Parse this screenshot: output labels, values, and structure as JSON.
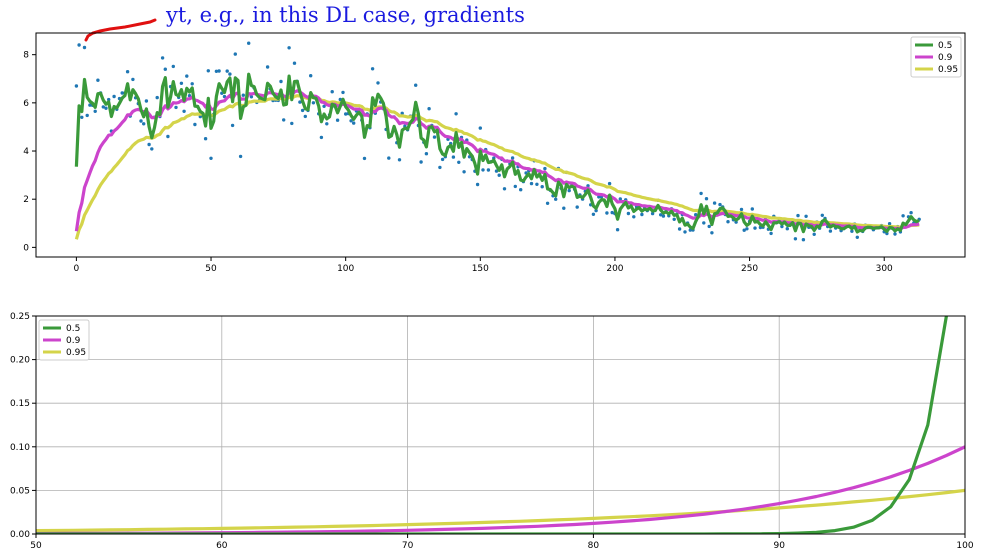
{
  "annotation": {
    "text": "yt, e.g., in this DL case, gradients",
    "color": "#1a1adf",
    "scribble_color": "#e01010"
  },
  "colors": {
    "s05": "#3a9a3a",
    "s09": "#cc44cc",
    "s095": "#d4d44a",
    "scatter": "#1f77b4",
    "grid": "#b0b0b0"
  },
  "chart_data": [
    {
      "type": "line",
      "title": "",
      "xlabel": "",
      "ylabel": "",
      "xlim": [
        -15,
        330
      ],
      "ylim": [
        -0.4,
        8.9
      ],
      "xticks": [
        0,
        50,
        100,
        150,
        200,
        250,
        300
      ],
      "yticks": [
        0,
        2,
        4,
        6,
        8
      ],
      "grid": false,
      "legend": "top-right",
      "scatter_series": "noisy observations (blue dots)",
      "series": [
        {
          "name": "0.5",
          "color": "#3a9a3a",
          "beta": 0.5
        },
        {
          "name": "0.9",
          "color": "#cc44cc",
          "beta": 0.9
        },
        {
          "name": "0.95",
          "color": "#d4d44a",
          "beta": 0.95
        }
      ],
      "underlying_trend": {
        "x": [
          0,
          20,
          40,
          60,
          70,
          80,
          100,
          120,
          140,
          160,
          180,
          200,
          220,
          240,
          260,
          280,
          300,
          313
        ],
        "y": [
          5.2,
          6.2,
          6.6,
          6.4,
          6.6,
          6.1,
          5.6,
          5.0,
          4.0,
          3.3,
          2.6,
          1.9,
          1.5,
          1.2,
          1.0,
          0.85,
          0.75,
          1.1
        ]
      }
    },
    {
      "type": "line",
      "title": "",
      "xlabel": "",
      "ylabel": "",
      "xlim": [
        50,
        100
      ],
      "ylim": [
        0,
        0.25
      ],
      "xticks": [
        50,
        60,
        70,
        80,
        90,
        100
      ],
      "yticks": [
        0.0,
        0.05,
        0.1,
        0.15,
        0.2,
        0.25
      ],
      "ytick_labels": [
        "0.00",
        "0.05",
        "0.10",
        "0.15",
        "0.20",
        "0.25"
      ],
      "grid": true,
      "legend": "top-left",
      "series": [
        {
          "name": "0.5",
          "color": "#3a9a3a",
          "formula": "(1-b)*b^(100-x)",
          "beta": 0.5
        },
        {
          "name": "0.9",
          "color": "#cc44cc",
          "formula": "(1-b)*b^(100-x)",
          "beta": 0.9
        },
        {
          "name": "0.95",
          "color": "#d4d44a",
          "formula": "(1-b)*b^(100-x)",
          "beta": 0.95
        }
      ]
    }
  ]
}
